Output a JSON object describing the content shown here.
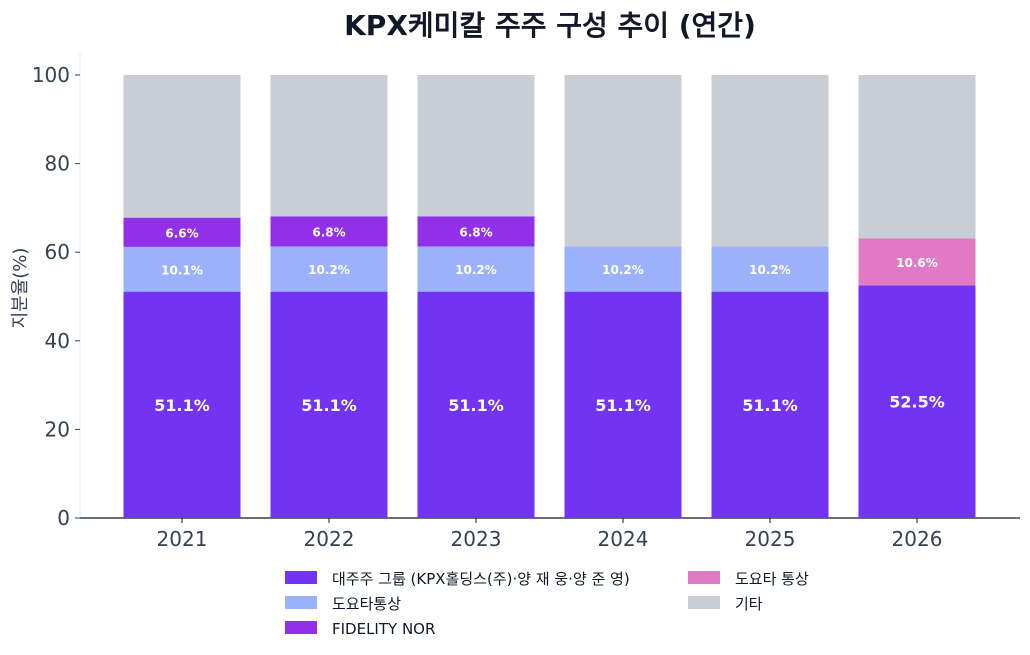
{
  "chart_data": {
    "type": "bar",
    "stacked": true,
    "title": "KPX케미칼 주주 구성 추이 (연간)",
    "xlabel": "",
    "ylabel": "지분율(%)",
    "ylim": [
      0,
      100
    ],
    "yticks": [
      0,
      20,
      40,
      60,
      80,
      100
    ],
    "grid": false,
    "legend_position": "bottom",
    "categories": [
      "2021",
      "2022",
      "2023",
      "2024",
      "2025",
      "2026"
    ],
    "series": [
      {
        "name": "대주주 그룹 (KPX홀딩스(주)·양 재 웅·양 준 영)",
        "color": "#7233f2",
        "values": [
          51.1,
          51.1,
          51.1,
          51.1,
          51.1,
          52.5
        ],
        "labels": [
          "51.1%",
          "51.1%",
          "51.1%",
          "51.1%",
          "51.1%",
          "52.5%"
        ]
      },
      {
        "name": "도요타통상",
        "color": "#9bb2fb",
        "values": [
          10.1,
          10.2,
          10.2,
          10.2,
          10.2,
          0
        ],
        "labels": [
          "10.1%",
          "10.2%",
          "10.2%",
          "10.2%",
          "10.2%",
          ""
        ]
      },
      {
        "name": "FIDELITY NOR",
        "color": "#9130e8",
        "values": [
          6.6,
          6.8,
          6.8,
          0,
          0,
          0
        ],
        "labels": [
          "6.6%",
          "6.8%",
          "6.8%",
          "",
          "",
          ""
        ]
      },
      {
        "name": "도요타 통상",
        "color": "#e07ac4",
        "values": [
          0,
          0,
          0,
          0,
          0,
          10.6
        ],
        "labels": [
          "",
          "",
          "",
          "",
          "",
          "10.6%"
        ]
      },
      {
        "name": "기타",
        "color": "#c9cdd6",
        "values": [
          32.2,
          31.9,
          31.9,
          38.7,
          38.7,
          36.9
        ],
        "labels": [
          "",
          "",
          "",
          "",
          "",
          ""
        ]
      }
    ],
    "legend_order": [
      0,
      1,
      2,
      3,
      4
    ]
  }
}
